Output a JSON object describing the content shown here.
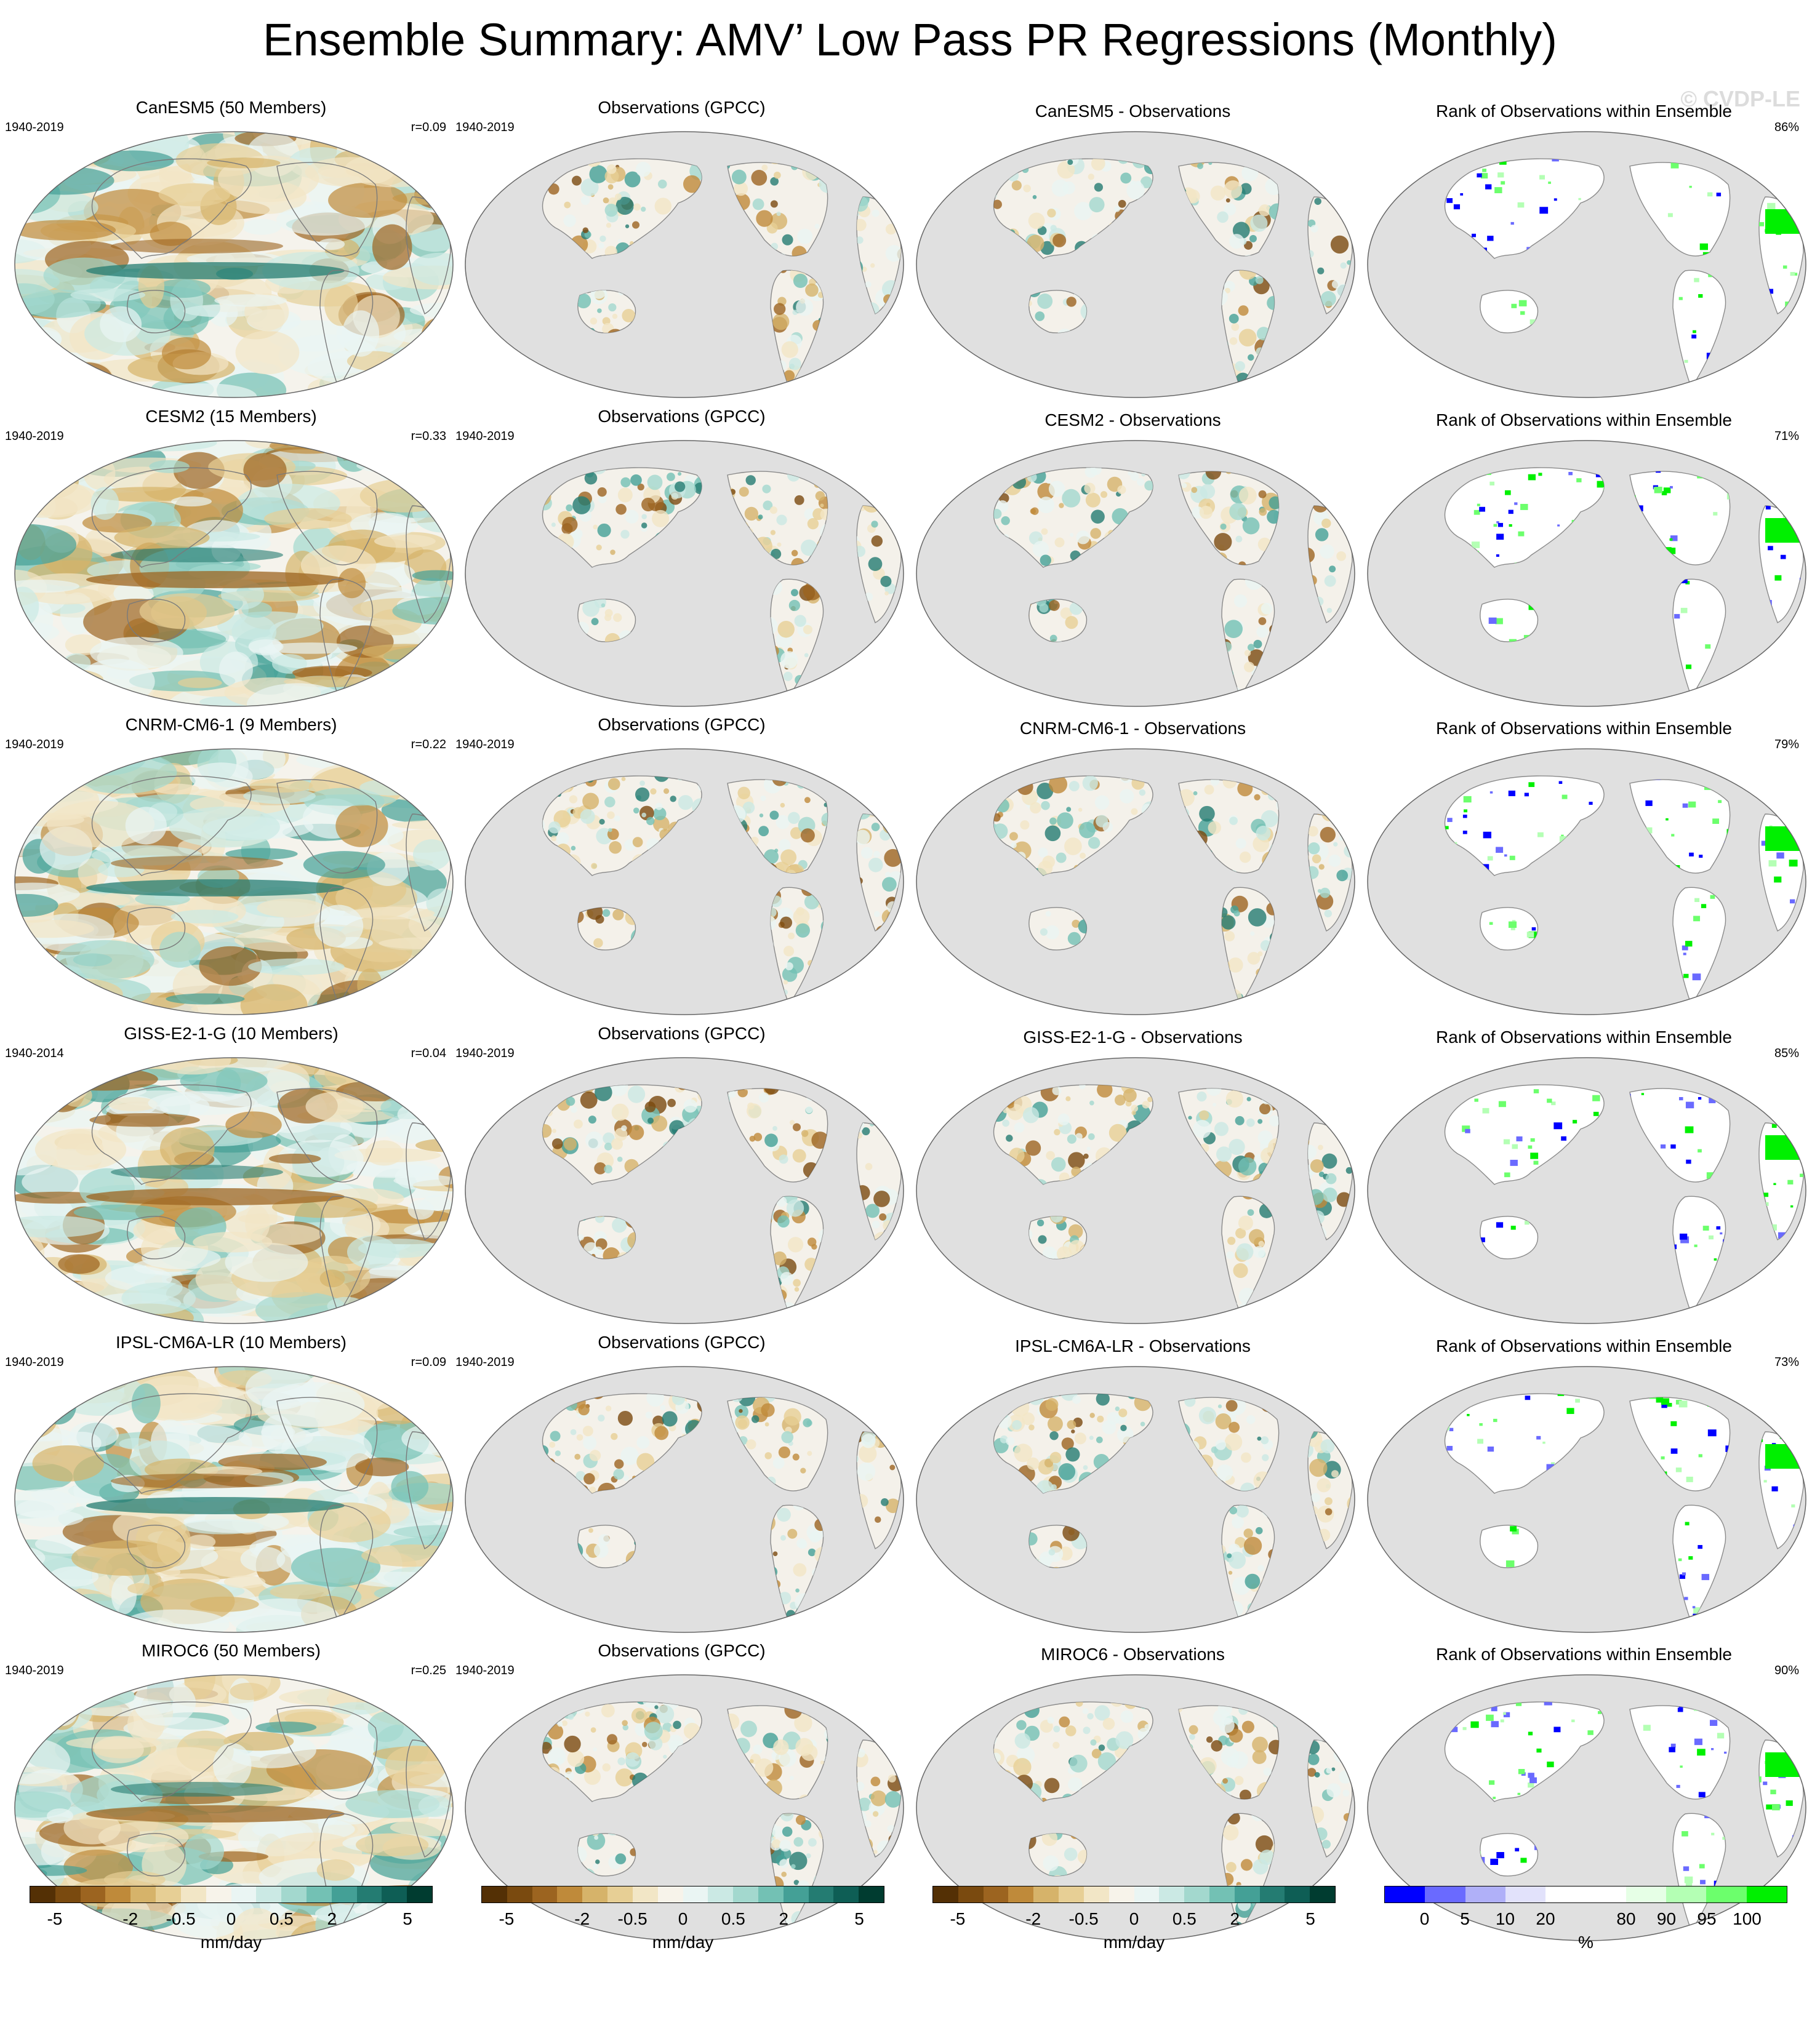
{
  "figure": {
    "title": "Ensemble Summary: AMV’ Low Pass PR Regressions (Monthly)",
    "watermark": "© CVDP-LE"
  },
  "chart_data": {
    "type": "map-panels",
    "rows": [
      {
        "model_title": "CanESM5 (50 Members)",
        "model_period": "1940-2019",
        "pattern_corr": "r=0.09",
        "obs_title": "Observations (GPCC)",
        "obs_period": "1940-2019",
        "diff_title": "CanESM5 - Observations",
        "rank_title": "Rank of Observations within Ensemble",
        "rank_pct": "86%"
      },
      {
        "model_title": "CESM2 (15 Members)",
        "model_period": "1940-2019",
        "pattern_corr": "r=0.33",
        "obs_title": "Observations (GPCC)",
        "obs_period": "1940-2019",
        "diff_title": "CESM2 - Observations",
        "rank_title": "Rank of Observations within Ensemble",
        "rank_pct": "71%"
      },
      {
        "model_title": "CNRM-CM6-1 (9 Members)",
        "model_period": "1940-2019",
        "pattern_corr": "r=0.22",
        "obs_title": "Observations (GPCC)",
        "obs_period": "1940-2019",
        "diff_title": "CNRM-CM6-1 - Observations",
        "rank_title": "Rank of Observations within Ensemble",
        "rank_pct": "79%"
      },
      {
        "model_title": "GISS-E2-1-G (10 Members)",
        "model_period": "1940-2014",
        "pattern_corr": "r=0.04",
        "obs_title": "Observations (GPCC)",
        "obs_period": "1940-2019",
        "diff_title": "GISS-E2-1-G - Observations",
        "rank_title": "Rank of Observations within Ensemble",
        "rank_pct": "85%"
      },
      {
        "model_title": "IPSL-CM6A-LR (10 Members)",
        "model_period": "1940-2019",
        "pattern_corr": "r=0.09",
        "obs_title": "Observations (GPCC)",
        "obs_period": "1940-2019",
        "diff_title": "IPSL-CM6A-LR - Observations",
        "rank_title": "Rank of Observations within Ensemble",
        "rank_pct": "73%"
      },
      {
        "model_title": "MIROC6 (50 Members)",
        "model_period": "1940-2019",
        "pattern_corr": "r=0.25",
        "obs_title": "Observations (GPCC)",
        "obs_period": "1940-2019",
        "diff_title": "MIROC6 - Observations",
        "rank_title": "Rank of Observations within Ensemble",
        "rank_pct": "90%"
      }
    ],
    "colorbars": [
      {
        "unit": "mm/day",
        "ticks": [
          "-5",
          "-2",
          "-0.5",
          "0",
          "0.5",
          "2",
          "5"
        ],
        "colors": [
          "#543005",
          "#7a4a0f",
          "#9c6420",
          "#bf8a3a",
          "#d6b36a",
          "#e7cf95",
          "#f2e6c6",
          "#f7f3ea",
          "#eaf5f3",
          "#cbe9e4",
          "#a3d8ce",
          "#73c1b4",
          "#44a096",
          "#247c72",
          "#0e5e55",
          "#003c30"
        ]
      },
      {
        "unit": "mm/day",
        "ticks": [
          "-5",
          "-2",
          "-0.5",
          "0",
          "0.5",
          "2",
          "5"
        ],
        "colors": [
          "#543005",
          "#7a4a0f",
          "#9c6420",
          "#bf8a3a",
          "#d6b36a",
          "#e7cf95",
          "#f2e6c6",
          "#f7f3ea",
          "#eaf5f3",
          "#cbe9e4",
          "#a3d8ce",
          "#73c1b4",
          "#44a096",
          "#247c72",
          "#0e5e55",
          "#003c30"
        ]
      },
      {
        "unit": "mm/day",
        "ticks": [
          "-5",
          "-2",
          "-0.5",
          "0",
          "0.5",
          "2",
          "5"
        ],
        "colors": [
          "#543005",
          "#7a4a0f",
          "#9c6420",
          "#bf8a3a",
          "#d6b36a",
          "#e7cf95",
          "#f2e6c6",
          "#f7f3ea",
          "#eaf5f3",
          "#cbe9e4",
          "#a3d8ce",
          "#73c1b4",
          "#44a096",
          "#247c72",
          "#0e5e55",
          "#003c30"
        ]
      },
      {
        "unit": "%",
        "ticks": [
          "0",
          "5",
          "10",
          "20",
          "80",
          "90",
          "95",
          "100"
        ],
        "colors": [
          "#0000ff",
          "#6a6aff",
          "#b0b0f8",
          "#e2e2fb",
          "#ffffff",
          "#ffffff",
          "#e6ffe6",
          "#b4ffb4",
          "#6cff6c",
          "#00f000"
        ]
      }
    ]
  }
}
